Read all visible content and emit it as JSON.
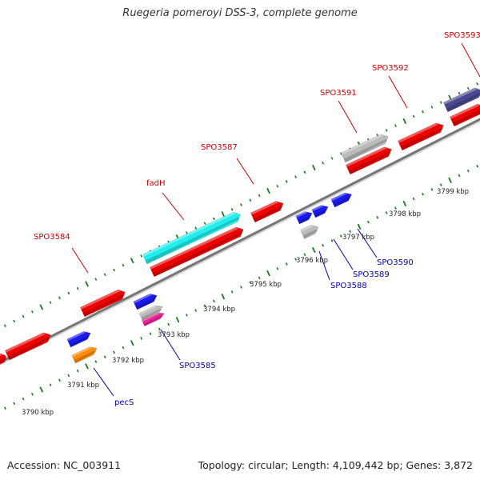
{
  "title": "Ruegeria pomeroyi DSS-3, complete genome",
  "footer": {
    "accession": "Accession: NC_003911",
    "summary": "Topology: circular; Length: 4,109,442 bp; Genes: 3,872"
  },
  "scale_labels": [
    "3790 kbp",
    "3791 kbp",
    "3792 kbp",
    "3793 kbp",
    "3794 kbp",
    "3795 kbp",
    "3796 kbp",
    "3797 kbp",
    "3798 kbp",
    "3799 kbp"
  ],
  "top_labels": [
    "SPO3584",
    "fadH",
    "SPO3587",
    "SPO3591",
    "SPO3592",
    "SPO3593"
  ],
  "bottom_labels": [
    "pecS",
    "SPO3585",
    "SPO3588",
    "SPO3589",
    "SPO3590"
  ],
  "colors": {
    "backbone": "#888888",
    "forward_gene": "#ee0000",
    "reverse_gene": "#1a1aee",
    "cyan_gene": "#22eeee",
    "gray_gene": "#bbbbbb",
    "navy_gene": "#4a4890",
    "orange_gene": "#ff8c00",
    "magenta_gene": "#ee2299",
    "ticks": "#1a7a1a",
    "top_label_color": "#cc0000",
    "bottom_label_color": "#0000aa"
  }
}
